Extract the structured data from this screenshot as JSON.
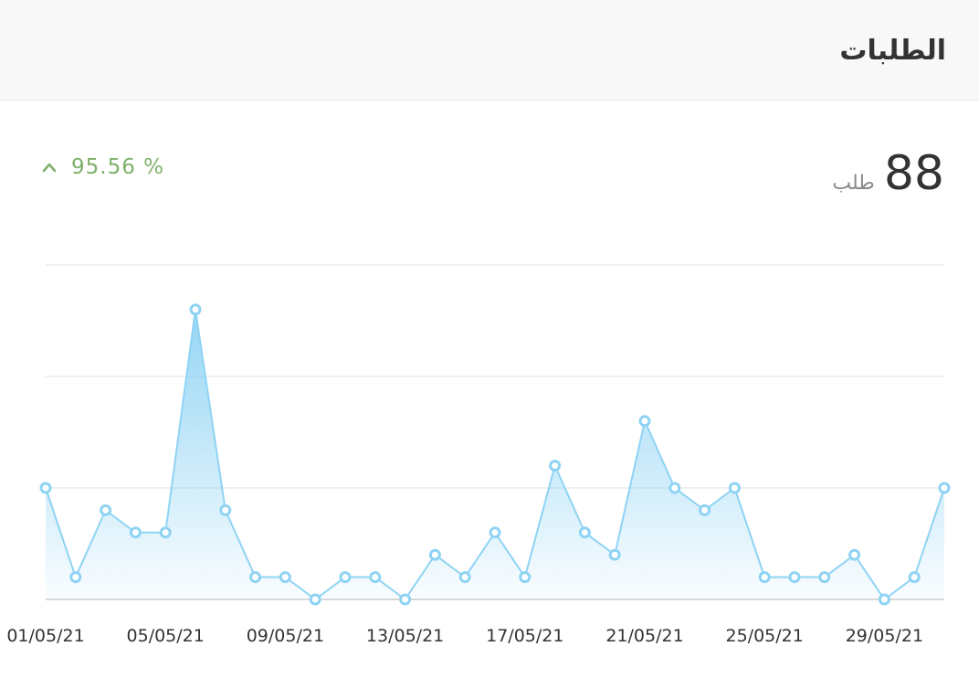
{
  "card": {
    "title": "الطلبات"
  },
  "stat": {
    "value": "88",
    "unit": "طلب"
  },
  "change": {
    "text": "95.56 %",
    "direction": "up",
    "color": "#7fb069",
    "icon": "chevron-up-icon"
  },
  "chart_data": {
    "type": "area",
    "x": [
      "01/05/21",
      "02/05/21",
      "03/05/21",
      "04/05/21",
      "05/05/21",
      "06/05/21",
      "07/05/21",
      "08/05/21",
      "09/05/21",
      "10/05/21",
      "11/05/21",
      "12/05/21",
      "13/05/21",
      "14/05/21",
      "15/05/21",
      "16/05/21",
      "17/05/21",
      "18/05/21",
      "19/05/21",
      "20/05/21",
      "21/05/21",
      "22/05/21",
      "23/05/21",
      "24/05/21",
      "25/05/21",
      "26/05/21",
      "27/05/21",
      "28/05/21",
      "29/05/21",
      "30/05/21",
      "31/05/21"
    ],
    "tick_labels": [
      "01/05/21",
      "05/05/21",
      "09/05/21",
      "13/05/21",
      "17/05/21",
      "21/05/21",
      "25/05/21",
      "29/05/21"
    ],
    "values": [
      5,
      1,
      4,
      3,
      3,
      13,
      4,
      1,
      1,
      0,
      1,
      1,
      0,
      2,
      1,
      3,
      1,
      6,
      3,
      2,
      8,
      5,
      4,
      5,
      1,
      1,
      1,
      2,
      0,
      1,
      5
    ],
    "ylim": [
      0,
      15
    ],
    "grid": true,
    "line_color": "#8fd3f4",
    "fill_color": "#8fd3f4"
  }
}
